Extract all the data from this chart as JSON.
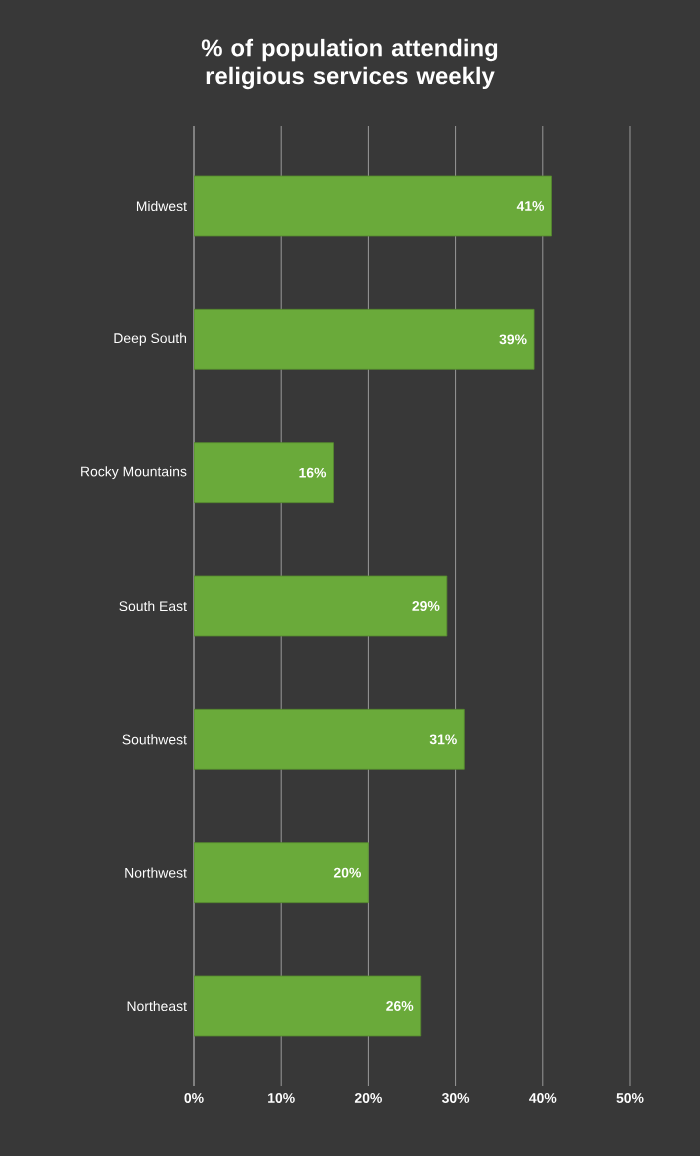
{
  "chart_data": {
    "type": "bar",
    "orientation": "horizontal",
    "title": "% of population attending religious services weekly",
    "categories": [
      "Midwest",
      "Deep South",
      "Rocky Mountains",
      "South East",
      "Southwest",
      "Northwest",
      "Northeast"
    ],
    "values": [
      41,
      39,
      16,
      29,
      31,
      20,
      26
    ],
    "value_labels": [
      "41%",
      "39%",
      "16%",
      "29%",
      "31%",
      "20%",
      "26%"
    ],
    "color": "#6aaa3a",
    "xlim": [
      0,
      50
    ],
    "xticks": [
      {
        "value": 0,
        "label": "0%"
      },
      {
        "value": 10,
        "label": "10%"
      },
      {
        "value": 20,
        "label": "20%"
      },
      {
        "value": 30,
        "label": "30%"
      },
      {
        "value": 40,
        "label": "40%"
      },
      {
        "value": 50,
        "label": "50%"
      }
    ],
    "grid": "x"
  }
}
